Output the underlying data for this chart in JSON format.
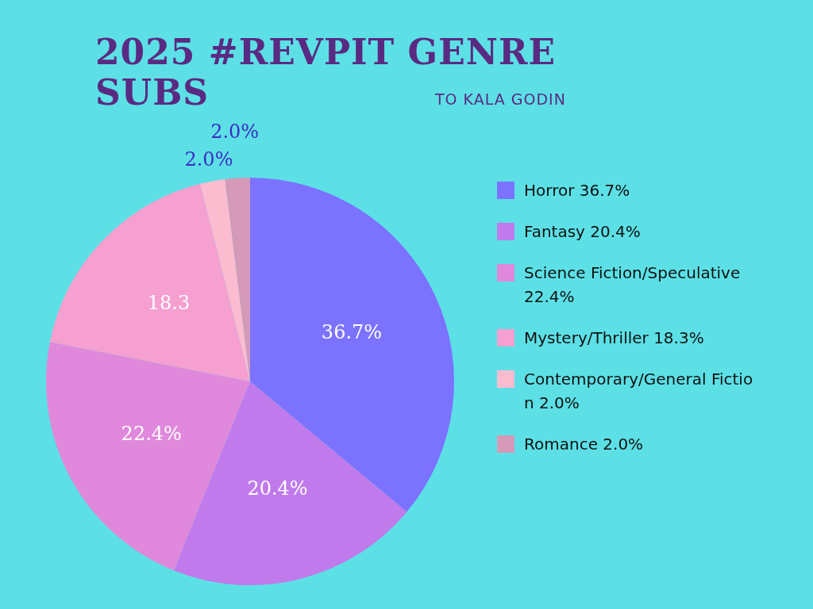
{
  "chart_data": {
    "type": "pie",
    "title": "2025 #REVPIT GENRE SUBS",
    "subtitle": "TO KALA GODIN",
    "categories": [
      "Horror 36.7%",
      "Fantasy 20.4%",
      "Science Fiction/Speculative 22.4%",
      "Mystery/Thriller 18.3%",
      "Contemporary/General Fiction 2.0%",
      "Romance 2.0%"
    ],
    "values": [
      36.7,
      20.4,
      22.4,
      18.3,
      2.0,
      2.0
    ],
    "colors": [
      "#7b73ff",
      "#c07aeb",
      "#e088dc",
      "#f5a0d0",
      "#fbbcd0",
      "#d49ab8"
    ],
    "value_labels": [
      "36.7%",
      "20.4%",
      "22.4%",
      "18.3",
      "2.0%",
      "2.0%"
    ],
    "legend": "right"
  }
}
